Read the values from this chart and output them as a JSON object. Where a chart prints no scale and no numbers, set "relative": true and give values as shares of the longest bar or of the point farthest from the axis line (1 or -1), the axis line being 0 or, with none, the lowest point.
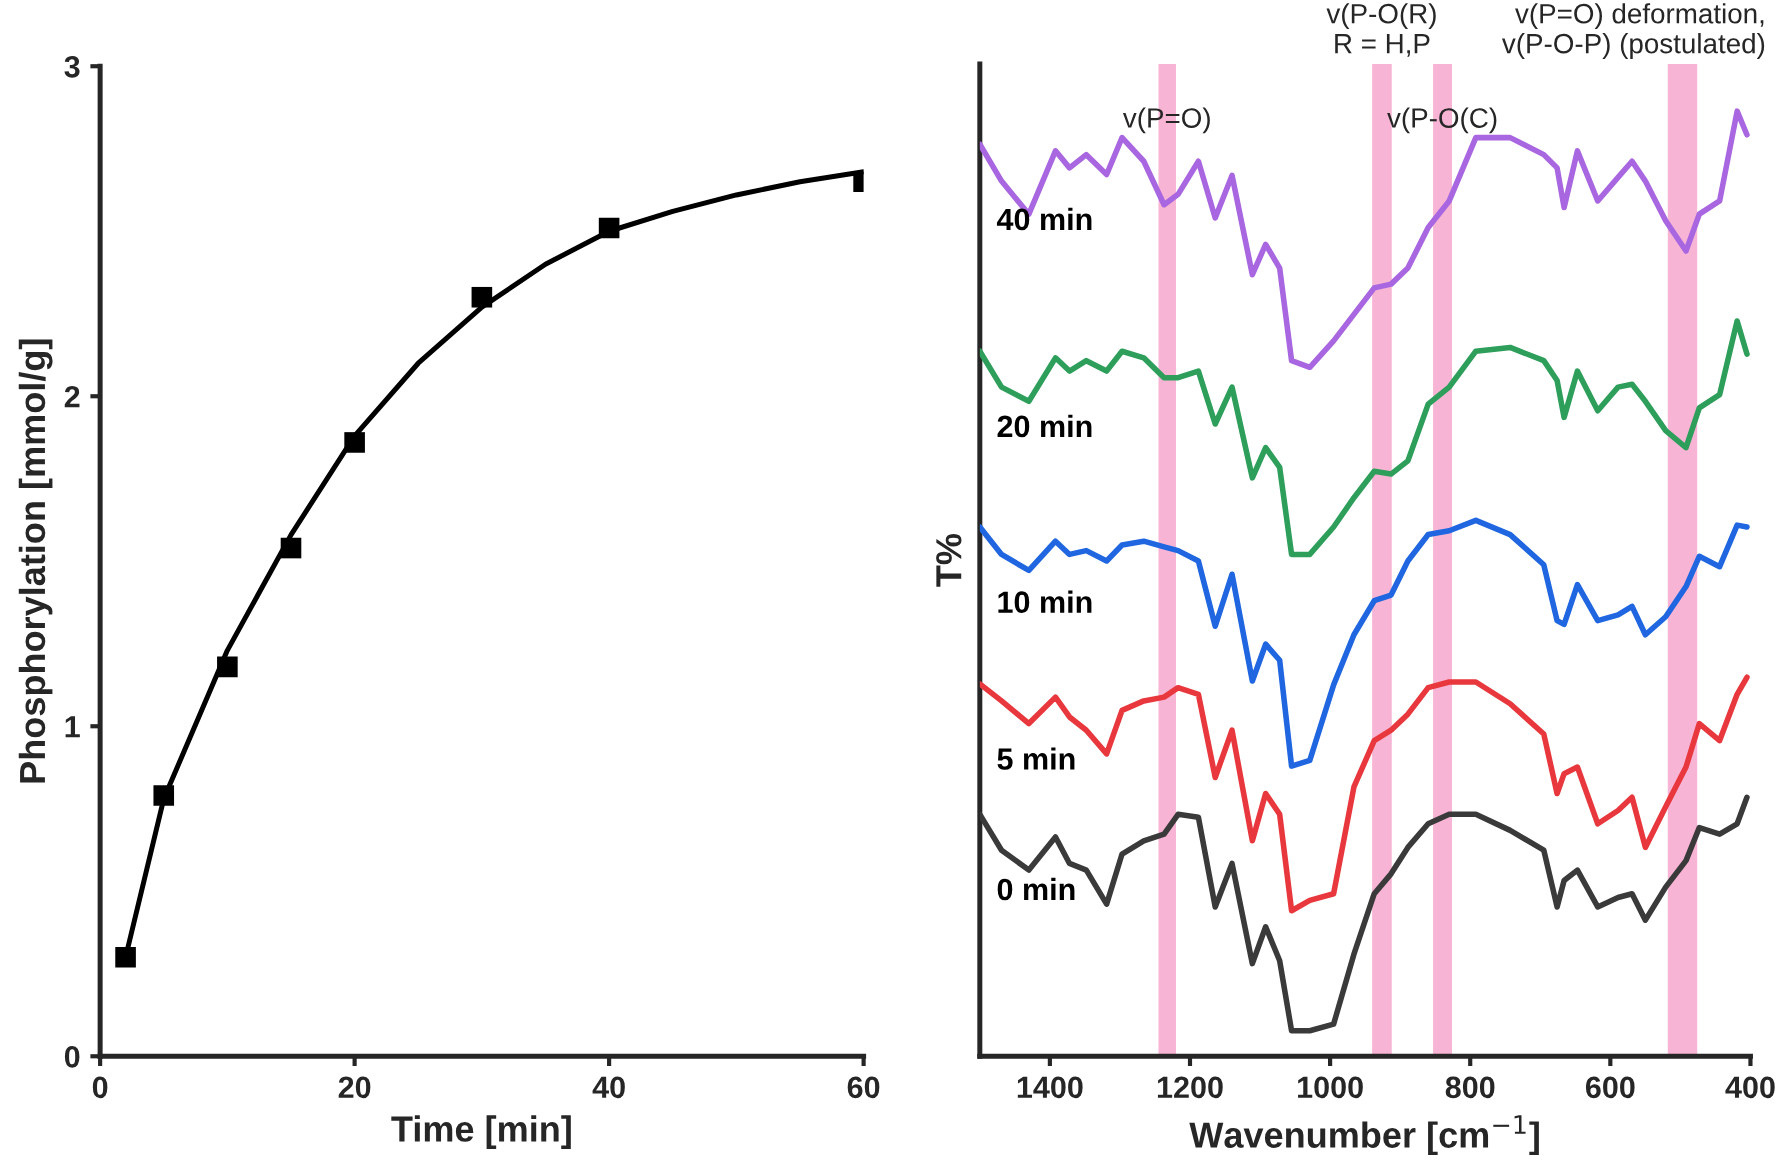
{
  "chart_data": [
    {
      "type": "scatter",
      "xlabel": "Time [min]",
      "ylabel": "Phosphorylation [mmol/g]",
      "xlim": [
        0,
        60
      ],
      "ylim": [
        0,
        3
      ],
      "xticks": [
        0,
        20,
        40,
        60
      ],
      "yticks": [
        0,
        1,
        2,
        3
      ],
      "grid": false,
      "legend": false,
      "marker": "square",
      "series": [
        {
          "type": "scatter",
          "color": "#000000",
          "x": [
            2,
            5,
            10,
            15,
            20,
            30,
            40,
            60
          ],
          "values": [
            0.3,
            0.79,
            1.18,
            1.54,
            1.86,
            2.3,
            2.51,
            2.65
          ]
        },
        {
          "type": "line",
          "color": "#000000",
          "marker": "none",
          "line_style": "solid",
          "x": [
            2,
            5,
            10,
            15,
            20,
            25,
            30,
            35,
            40,
            45,
            50,
            55,
            60
          ],
          "values": [
            0.3,
            0.78,
            1.23,
            1.58,
            1.88,
            2.1,
            2.27,
            2.4,
            2.5,
            2.56,
            2.61,
            2.65,
            2.68
          ]
        }
      ]
    },
    {
      "type": "line",
      "relative": true,
      "xlabel": "Wavenumber [cm$^{−1}$]",
      "ylabel": "T%",
      "xlim": [
        1500,
        400
      ],
      "xticks": [
        1400,
        1200,
        1000,
        800,
        600,
        400
      ],
      "tick_labels": "x",
      "grid": false,
      "legend": false,
      "marker": "none",
      "line_style": "solid",
      "x": [
        1500,
        1469,
        1430,
        1392,
        1372,
        1348,
        1319,
        1297,
        1266,
        1237,
        1217,
        1188,
        1164,
        1140,
        1111,
        1092,
        1072,
        1055,
        1029,
        995,
        966,
        937,
        913,
        889,
        860,
        830,
        792,
        743,
        695,
        676,
        666,
        647,
        618,
        589,
        569,
        550,
        521,
        492,
        473,
        444,
        419,
        405
      ],
      "series": [
        {
          "name": "40 min",
          "color": "#a866e0",
          "values": [
            0.965,
            0.926,
            0.891,
            0.958,
            0.94,
            0.954,
            0.933,
            0.972,
            0.947,
            0.901,
            0.912,
            0.947,
            0.887,
            0.932,
            0.827,
            0.859,
            0.834,
            0.736,
            0.729,
            0.757,
            0.785,
            0.813,
            0.817,
            0.834,
            0.877,
            0.905,
            0.972,
            0.972,
            0.954,
            0.94,
            0.898,
            0.958,
            0.905,
            0.93,
            0.947,
            0.926,
            0.884,
            0.852,
            0.891,
            0.905,
            1.0,
            0.975
          ]
        },
        {
          "name": "20 min",
          "color": "#2e9e5b",
          "values": [
            0.746,
            0.708,
            0.693,
            0.739,
            0.725,
            0.736,
            0.725,
            0.746,
            0.739,
            0.718,
            0.718,
            0.725,
            0.669,
            0.708,
            0.612,
            0.644,
            0.623,
            0.531,
            0.531,
            0.56,
            0.591,
            0.619,
            0.616,
            0.63,
            0.69,
            0.708,
            0.746,
            0.75,
            0.736,
            0.715,
            0.676,
            0.725,
            0.683,
            0.708,
            0.711,
            0.693,
            0.662,
            0.644,
            0.686,
            0.7,
            0.778,
            0.743
          ]
        },
        {
          "name": "10 min",
          "color": "#1f66e0",
          "values": [
            0.56,
            0.531,
            0.514,
            0.545,
            0.531,
            0.535,
            0.524,
            0.541,
            0.545,
            0.539,
            0.535,
            0.524,
            0.455,
            0.51,
            0.397,
            0.436,
            0.419,
            0.307,
            0.313,
            0.393,
            0.446,
            0.482,
            0.488,
            0.524,
            0.552,
            0.556,
            0.567,
            0.552,
            0.52,
            0.461,
            0.457,
            0.499,
            0.461,
            0.467,
            0.476,
            0.446,
            0.465,
            0.497,
            0.529,
            0.518,
            0.562,
            0.56
          ]
        },
        {
          "name": "5 min",
          "color": "#e8383d",
          "values": [
            0.394,
            0.376,
            0.352,
            0.38,
            0.359,
            0.345,
            0.32,
            0.366,
            0.376,
            0.38,
            0.39,
            0.383,
            0.295,
            0.345,
            0.228,
            0.278,
            0.256,
            0.154,
            0.165,
            0.172,
            0.285,
            0.334,
            0.345,
            0.362,
            0.39,
            0.396,
            0.396,
            0.373,
            0.341,
            0.278,
            0.299,
            0.306,
            0.246,
            0.26,
            0.274,
            0.221,
            0.264,
            0.306,
            0.352,
            0.334,
            0.383,
            0.401
          ]
        },
        {
          "name": "0 min",
          "color": "#3a3a3a",
          "values": [
            0.256,
            0.218,
            0.197,
            0.232,
            0.204,
            0.197,
            0.161,
            0.214,
            0.228,
            0.235,
            0.256,
            0.253,
            0.158,
            0.204,
            0.098,
            0.137,
            0.101,
            0.027,
            0.027,
            0.034,
            0.108,
            0.172,
            0.193,
            0.221,
            0.246,
            0.256,
            0.256,
            0.239,
            0.218,
            0.158,
            0.186,
            0.197,
            0.158,
            0.168,
            0.172,
            0.144,
            0.179,
            0.207,
            0.242,
            0.235,
            0.246,
            0.274
          ]
        }
      ],
      "bands": [
        {
          "axis": "x",
          "from": 1245,
          "to": 1220,
          "label": "v(P=O)",
          "color": "#f8b4d4"
        },
        {
          "axis": "x",
          "from": 940,
          "to": 912,
          "label": "v(P-O(R)\nR = H,P",
          "color": "#f8b4d4"
        },
        {
          "axis": "x",
          "from": 853,
          "to": 826,
          "label": "v(P-O(C)",
          "color": "#f8b4d4"
        },
        {
          "axis": "x",
          "from": 518,
          "to": 476,
          "label": "v(P=O) deformation,\nv(P-O-P) (postulated)",
          "color": "#f8b4d4"
        }
      ]
    }
  ]
}
